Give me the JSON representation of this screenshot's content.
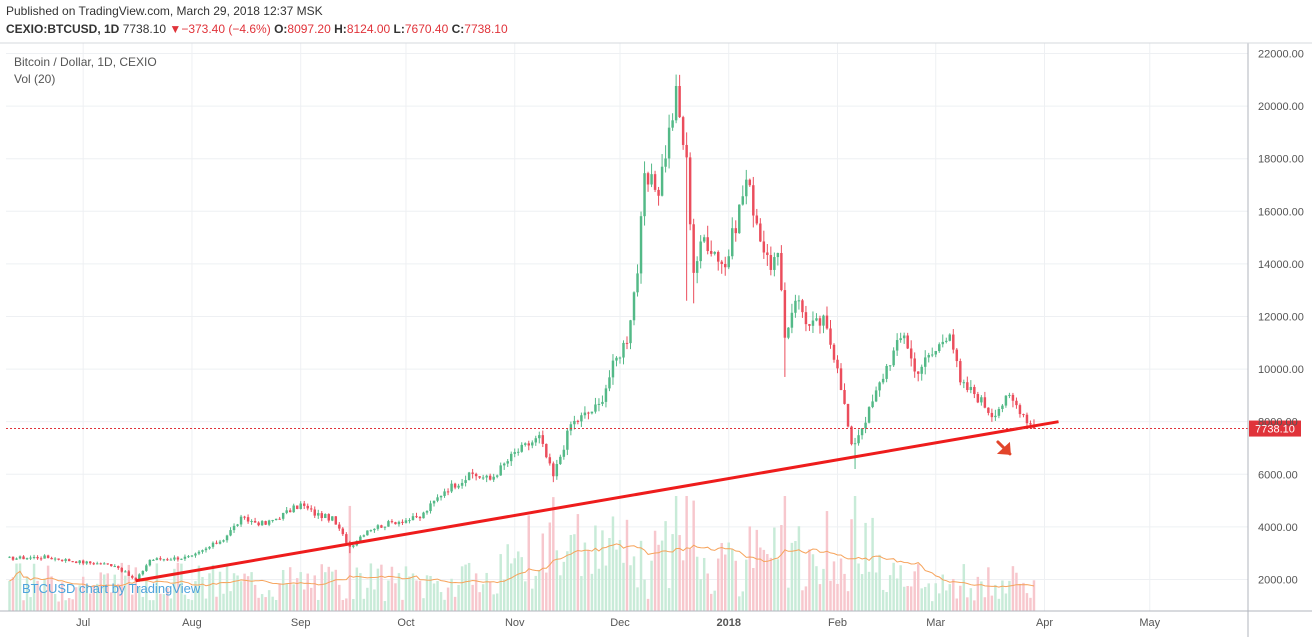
{
  "header": {
    "published": "Published on TradingView.com, March 29, 2018 12:37 MSK",
    "symbol": "CEXIO:BTCUSD, 1D",
    "last": "7738.10",
    "change_arrow": "▼",
    "change": "−373.40 (−4.6%)",
    "o_label": "O:",
    "o_value": "8097.20",
    "h_label": "H:",
    "h_value": "8124.00",
    "l_label": "L:",
    "l_value": "7670.40",
    "c_label": "C:",
    "c_value": "7738.10"
  },
  "legend": {
    "series_title": "Bitcoin / Dollar, 1D, CEXIO",
    "volume_title": "Vol (20)"
  },
  "watermark": "BTCUSD chart by TradingView",
  "colors": {
    "up": "#53b987",
    "down": "#eb4d5c",
    "up_vol": "#c8ebd8",
    "down_vol": "#f7c7cd",
    "trendline": "#ee1c1c",
    "price_line": "#e0333a",
    "vol_ma": "#f6a35b",
    "arrow": "#e2452b",
    "grid": "#eef0f3"
  },
  "chart_data": {
    "type": "candlestick",
    "y_axis": {
      "min": 800,
      "max": 22400,
      "ticks": [
        2000,
        4000,
        6000,
        8000,
        10000,
        12000,
        14000,
        16000,
        18000,
        20000,
        22000
      ],
      "tick_labels": [
        "2000.00",
        "4000.00",
        "6000.00",
        "8000.00",
        "10000.00",
        "12000.00",
        "14000.00",
        "16000.00",
        "18000.00",
        "20000.00",
        "22000.00"
      ]
    },
    "x_axis": {
      "start": "2017-06-09",
      "end": "2018-05-29",
      "labels": [
        {
          "date": "2017-07-01",
          "text": "Jul"
        },
        {
          "date": "2017-08-01",
          "text": "Aug"
        },
        {
          "date": "2017-09-01",
          "text": "Sep"
        },
        {
          "date": "2017-10-01",
          "text": "Oct"
        },
        {
          "date": "2017-11-01",
          "text": "Nov"
        },
        {
          "date": "2017-12-01",
          "text": "Dec"
        },
        {
          "date": "2018-01-01",
          "text": "2018"
        },
        {
          "date": "2018-02-01",
          "text": "Feb"
        },
        {
          "date": "2018-03-01",
          "text": "Mar"
        },
        {
          "date": "2018-04-01",
          "text": "Apr"
        },
        {
          "date": "2018-05-01",
          "text": "May"
        }
      ]
    },
    "price_anchors": [
      [
        "2017-06-09",
        2800
      ],
      [
        "2017-06-20",
        2850
      ],
      [
        "2017-07-01",
        2650
      ],
      [
        "2017-07-10",
        2550
      ],
      [
        "2017-07-16",
        1950
      ],
      [
        "2017-07-20",
        2750
      ],
      [
        "2017-08-01",
        2850
      ],
      [
        "2017-08-10",
        3550
      ],
      [
        "2017-08-15",
        4300
      ],
      [
        "2017-08-22",
        4100
      ],
      [
        "2017-09-01",
        4850
      ],
      [
        "2017-09-05",
        4500
      ],
      [
        "2017-09-10",
        4300
      ],
      [
        "2017-09-15",
        3250
      ],
      [
        "2017-09-20",
        3900
      ],
      [
        "2017-09-28",
        4200
      ],
      [
        "2017-10-05",
        4350
      ],
      [
        "2017-10-12",
        5400
      ],
      [
        "2017-10-20",
        6000
      ],
      [
        "2017-10-25",
        5800
      ],
      [
        "2017-11-01",
        6800
      ],
      [
        "2017-11-08",
        7400
      ],
      [
        "2017-11-12",
        5900
      ],
      [
        "2017-11-17",
        7900
      ],
      [
        "2017-11-25",
        8600
      ],
      [
        "2017-11-29",
        10100
      ],
      [
        "2017-12-03",
        11200
      ],
      [
        "2017-12-06",
        13800
      ],
      [
        "2017-12-08",
        17100
      ],
      [
        "2017-12-12",
        16900
      ],
      [
        "2017-12-17",
        20400
      ],
      [
        "2017-12-20",
        17800
      ],
      [
        "2017-12-22",
        13800
      ],
      [
        "2017-12-25",
        15000
      ],
      [
        "2017-12-28",
        14500
      ],
      [
        "2017-12-31",
        13900
      ],
      [
        "2018-01-06",
        17200
      ],
      [
        "2018-01-08",
        16200
      ],
      [
        "2018-01-12",
        14000
      ],
      [
        "2018-01-15",
        14200
      ],
      [
        "2018-01-17",
        11200
      ],
      [
        "2018-01-20",
        12800
      ],
      [
        "2018-01-24",
        11600
      ],
      [
        "2018-01-28",
        11800
      ],
      [
        "2018-02-01",
        10200
      ],
      [
        "2018-02-05",
        7000
      ],
      [
        "2018-02-10",
        8400
      ],
      [
        "2018-02-15",
        10100
      ],
      [
        "2018-02-20",
        11400
      ],
      [
        "2018-02-23",
        9900
      ],
      [
        "2018-03-01",
        10700
      ],
      [
        "2018-03-05",
        11550
      ],
      [
        "2018-03-08",
        9400
      ],
      [
        "2018-03-12",
        9100
      ],
      [
        "2018-03-17",
        8300
      ],
      [
        "2018-03-20",
        8700
      ],
      [
        "2018-03-22",
        8900
      ],
      [
        "2018-03-25",
        8500
      ],
      [
        "2018-03-27",
        8100
      ],
      [
        "2018-03-29",
        7738.1
      ]
    ],
    "spikes": [
      [
        "2017-12-20",
        "low",
        12600
      ],
      [
        "2017-12-22",
        "low",
        12500
      ],
      [
        "2018-01-17",
        "low",
        9700
      ],
      [
        "2018-02-06",
        "low",
        6200
      ],
      [
        "2017-12-17",
        "high",
        21200
      ],
      [
        "2017-11-12",
        "low",
        5700
      ],
      [
        "2017-09-15",
        "low",
        3000
      ]
    ],
    "last_price": 7738.1,
    "last_price_label": "7738.10",
    "trendline": {
      "from": [
        "2017-07-16",
        1950
      ],
      "to": [
        "2018-04-05",
        8000
      ]
    },
    "annotation_arrow": {
      "at": [
        "2018-03-21",
        6850
      ]
    },
    "volume": {
      "period": 20,
      "scale_max": 14000
    }
  }
}
